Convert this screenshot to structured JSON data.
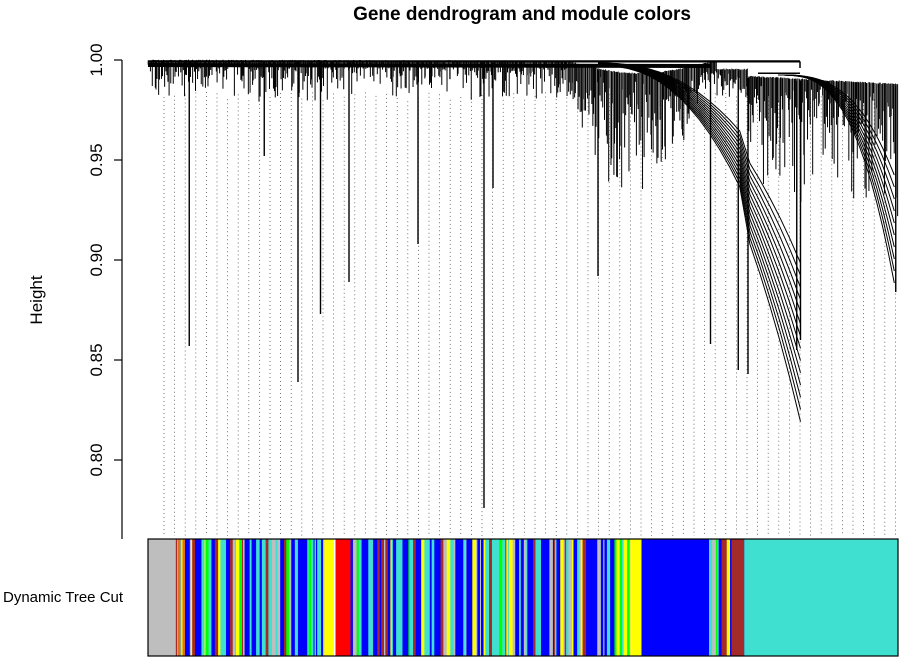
{
  "chart_data": {
    "type": "dendrogram",
    "title": "Gene dendrogram and module colors",
    "xlabel": "",
    "ylabel": "Height",
    "ylim": [
      0.76,
      1.0
    ],
    "y_ticks": [
      0.8,
      0.85,
      0.9,
      0.95,
      1.0
    ],
    "y_tick_labels": [
      "0.80",
      "0.85",
      "0.90",
      "0.95",
      "1.00"
    ],
    "color_row_label": "Dynamic Tree Cut",
    "module_colors": {
      "grey": "#bebebe",
      "turquoise": "#40e0d0",
      "blue": "#0000ff",
      "brown": "#a52a2a",
      "yellow": "#ffff00",
      "green": "#00ff00",
      "red": "#ff0000"
    },
    "module_blocks": [
      {
        "module": "grey",
        "start": 0.0,
        "end": 0.037
      },
      {
        "module": "mixed",
        "start": 0.037,
        "end": 0.235
      },
      {
        "module": "yellow",
        "start": 0.235,
        "end": 0.248
      },
      {
        "module": "red",
        "start": 0.25,
        "end": 0.27
      },
      {
        "module": "mixed",
        "start": 0.27,
        "end": 0.643
      },
      {
        "module": "yellow",
        "start": 0.643,
        "end": 0.658
      },
      {
        "module": "blue",
        "start": 0.658,
        "end": 0.748
      },
      {
        "module": "mixed",
        "start": 0.748,
        "end": 0.795
      },
      {
        "module": "brown",
        "start": 0.778,
        "end": 0.795
      },
      {
        "module": "turquoise",
        "start": 0.795,
        "end": 1.0
      }
    ],
    "deep_branches": [
      {
        "pos": 0.055,
        "height": 0.857
      },
      {
        "pos": 0.155,
        "height": 0.952
      },
      {
        "pos": 0.2,
        "height": 0.839
      },
      {
        "pos": 0.23,
        "height": 0.873
      },
      {
        "pos": 0.268,
        "height": 0.889
      },
      {
        "pos": 0.36,
        "height": 0.908
      },
      {
        "pos": 0.448,
        "height": 0.776
      },
      {
        "pos": 0.46,
        "height": 0.936
      },
      {
        "pos": 0.6,
        "height": 0.892
      },
      {
        "pos": 0.75,
        "height": 0.858
      },
      {
        "pos": 0.787,
        "height": 0.845
      },
      {
        "pos": 0.8,
        "height": 0.843
      },
      {
        "pos": 0.865,
        "height": 0.855
      },
      {
        "pos": 0.87,
        "height": 0.86
      },
      {
        "pos": 0.997,
        "height": 0.884
      }
    ]
  }
}
